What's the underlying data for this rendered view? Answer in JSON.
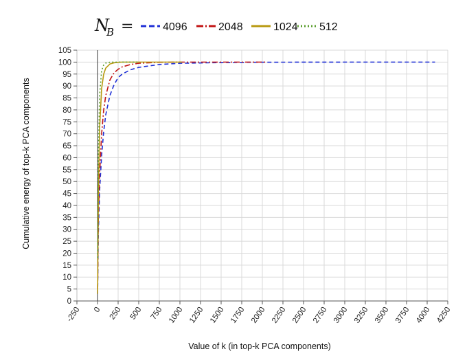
{
  "chart_data": {
    "type": "line",
    "title": "",
    "xlabel": "Value of k (in top-k PCA components)",
    "ylabel": "Cumulative energy of top-k PCA components",
    "xlim": [
      -250,
      4250
    ],
    "ylim": [
      0,
      105
    ],
    "x_ticks": [
      "-250",
      "0",
      "250",
      "500",
      "750",
      "1000",
      "1250",
      "1500",
      "1750",
      "2000",
      "2250",
      "2500",
      "2750",
      "3000",
      "3250",
      "3500",
      "3750",
      "4000",
      "4250"
    ],
    "y_ticks": [
      "0",
      "5",
      "10",
      "15",
      "20",
      "25",
      "30",
      "35",
      "40",
      "45",
      "50",
      "55",
      "60",
      "65",
      "70",
      "75",
      "80",
      "85",
      "90",
      "95",
      "100",
      "105"
    ],
    "grid": true,
    "legend": {
      "position": "top",
      "title_symbol": "N",
      "title_subscript": "B",
      "title_equals": "="
    },
    "series": [
      {
        "name": "4096",
        "color": "#1f2fd6",
        "dash": "dashed",
        "x": [
          1,
          10,
          25,
          50,
          75,
          100,
          150,
          200,
          250,
          300,
          400,
          500,
          750,
          1000,
          1500,
          2000,
          3000,
          4096
        ],
        "y": [
          3,
          28,
          46,
          61,
          71,
          78,
          86,
          90.5,
          93.5,
          95,
          96.8,
          97.8,
          99,
          99.5,
          99.8,
          99.95,
          100,
          100
        ]
      },
      {
        "name": "2048",
        "color": "#c21414",
        "dash": "dashdot",
        "x": [
          1,
          10,
          25,
          50,
          75,
          100,
          150,
          200,
          250,
          300,
          400,
          500,
          750,
          1000,
          1500,
          2048
        ],
        "y": [
          5,
          34,
          53,
          70,
          80,
          86,
          92.5,
          95.5,
          97,
          98,
          99,
          99.5,
          99.9,
          100,
          100,
          100
        ]
      },
      {
        "name": "1024",
        "color": "#b89a10",
        "dash": "solid",
        "x": [
          1,
          10,
          25,
          50,
          75,
          100,
          150,
          200,
          250,
          300,
          400,
          500,
          750,
          1024
        ],
        "y": [
          3,
          45,
          72,
          89,
          95,
          97.5,
          99.2,
          99.7,
          99.9,
          100,
          100,
          100,
          100,
          100
        ]
      },
      {
        "name": "512",
        "color": "#5a9e2c",
        "dash": "dotted",
        "x": [
          1,
          10,
          25,
          50,
          75,
          100,
          150,
          200,
          300,
          400,
          512
        ],
        "y": [
          18,
          60,
          86,
          96.5,
          98.8,
          99.6,
          99.95,
          100,
          100,
          100,
          100
        ]
      }
    ]
  }
}
